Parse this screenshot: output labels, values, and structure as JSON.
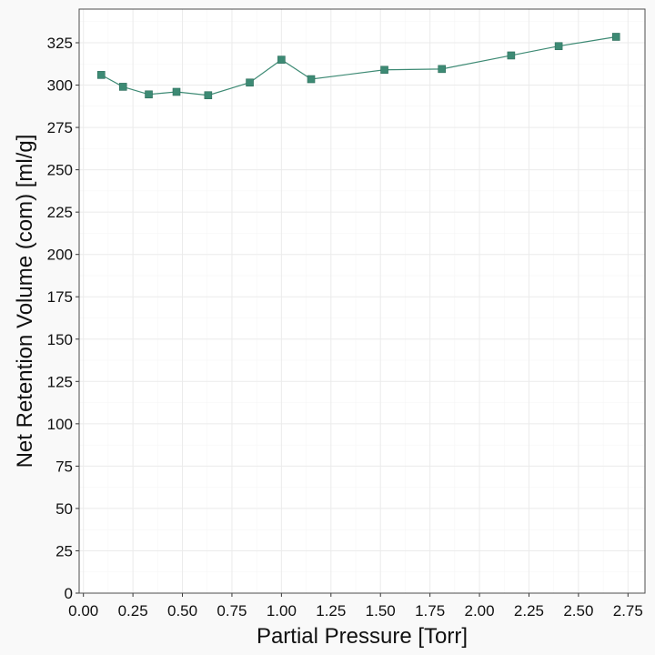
{
  "chart_data": {
    "type": "line",
    "title": "",
    "xlabel": "Partial Pressure [Torr]",
    "ylabel": "Net Retention Volume (com) [ml/g]",
    "xlim": [
      0,
      2.8
    ],
    "ylim": [
      0,
      340
    ],
    "grid": true,
    "legend": "none",
    "x_ticks": [
      0.0,
      0.25,
      0.5,
      0.75,
      1.0,
      1.25,
      1.5,
      1.75,
      2.0,
      2.25,
      2.5,
      2.75
    ],
    "x_tick_labels": [
      "0.00",
      "0.25",
      "0.50",
      "0.75",
      "1.00",
      "1.25",
      "1.50",
      "1.75",
      "2.00",
      "2.25",
      "2.50",
      "2.75"
    ],
    "y_ticks": [
      0,
      25,
      50,
      75,
      100,
      125,
      150,
      175,
      200,
      225,
      250,
      275,
      300,
      325
    ],
    "y_tick_labels": [
      "0",
      "25",
      "50",
      "75",
      "100",
      "125",
      "150",
      "175",
      "200",
      "225",
      "250",
      "275",
      "300",
      "325"
    ],
    "series": [
      {
        "color": "#3d8a74",
        "marker": "square",
        "x": [
          0.09,
          0.2,
          0.33,
          0.47,
          0.63,
          0.84,
          1.0,
          1.15,
          1.52,
          1.81,
          2.16,
          2.4,
          2.69
        ],
        "y": [
          306,
          299,
          294.5,
          296,
          294,
          301.5,
          315,
          303.5,
          309,
          309.5,
          317.5,
          323,
          328.5
        ]
      }
    ]
  }
}
